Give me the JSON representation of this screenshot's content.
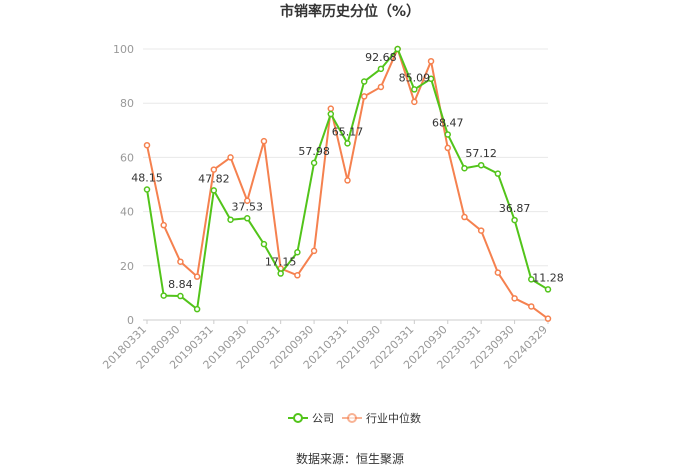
{
  "chart_data": {
    "type": "line",
    "title": "市销率历史分位（%）",
    "xlabel": "",
    "ylabel": "",
    "ylim": [
      0,
      100
    ],
    "yticks": [
      0,
      20,
      40,
      60,
      80,
      100
    ],
    "grid": true,
    "legend_position": "bottom",
    "x": [
      "20180331",
      "20180630",
      "20180930",
      "20181231",
      "20190331",
      "20190630",
      "20190930",
      "20191231",
      "20200331",
      "20200630",
      "20200930",
      "20201231",
      "20210331",
      "20210630",
      "20210930",
      "20211231",
      "20220331",
      "20220630",
      "20220930",
      "20221231",
      "20230331",
      "20230630",
      "20230930",
      "20231231",
      "20240329"
    ],
    "xtick_labels": [
      "20180331",
      "20180930",
      "20190331",
      "20190930",
      "20200331",
      "20200930",
      "20210331",
      "20210930",
      "20220331",
      "20220930",
      "20230331",
      "20230930",
      "20240329"
    ],
    "series": [
      {
        "name": "公司",
        "color": "#52c41a",
        "values": [
          48.15,
          9.0,
          8.84,
          4.0,
          47.82,
          37.0,
          37.53,
          28.0,
          17.15,
          25.0,
          57.98,
          76.0,
          65.17,
          88.0,
          92.68,
          100.0,
          85.09,
          89.0,
          68.47,
          56.0,
          57.12,
          54.0,
          36.87,
          15.0,
          11.28
        ],
        "labels": {
          "0": "48.15",
          "2": "8.84",
          "4": "47.82",
          "6": "37.53",
          "8": "17.15",
          "10": "57.98",
          "12": "65.17",
          "14": "92.68",
          "16": "85.09",
          "18": "68.47",
          "20": "57.12",
          "22": "36.87",
          "24": "11.28"
        }
      },
      {
        "name": "行业中位数",
        "color": "#f5814f",
        "values": [
          64.5,
          35.0,
          21.5,
          16.0,
          55.5,
          60.0,
          44.0,
          66.0,
          19.0,
          16.5,
          25.5,
          78.0,
          51.5,
          82.5,
          86.0,
          100.0,
          80.5,
          95.5,
          63.5,
          38.0,
          33.0,
          17.5,
          8.0,
          5.0,
          0.5
        ]
      }
    ]
  },
  "source": "数据来源：恒生聚源"
}
